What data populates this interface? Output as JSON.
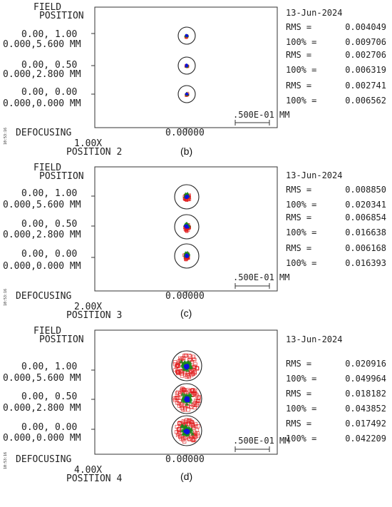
{
  "panels": [
    {
      "id": "b",
      "field_title_1": "FIELD",
      "field_title_2": "POSITION",
      "date": "13-Jun-2024",
      "fields": [
        {
          "angle": "0.00, 1.00",
          "height": "0.000,5.600 MM",
          "rms_label": "RMS =",
          "rms_value": "0.004049",
          "p100_label": "100% =",
          "p100_value": "0.009706"
        },
        {
          "angle": "0.00, 0.50",
          "height": "0.000,2.800 MM",
          "rms_label": "RMS =",
          "rms_value": "0.002706",
          "p100_label": "100% =",
          "p100_value": "0.006319"
        },
        {
          "angle": "0.00, 0.00",
          "height": "0.000,0.000 MM",
          "rms_label": "RMS =",
          "rms_value": "0.002741",
          "p100_label": "100% =",
          "p100_value": "0.006562"
        }
      ],
      "scale_label": ".500E-01 MM",
      "timestamp": "10:53:16",
      "defocusing_label": "DEFOCUSING",
      "defocusing_value": "0.00000",
      "magnification": "1.00X",
      "position": "POSITION  2",
      "caption": "(b)",
      "spot_spread": 0.9,
      "colors": {
        "red": "#e02020",
        "green": "#1a8a1a",
        "blue": "#1010e0"
      }
    },
    {
      "id": "c",
      "field_title_1": "FIELD",
      "field_title_2": "POSITION",
      "date": "13-Jun-2024",
      "fields": [
        {
          "angle": "0.00, 1.00",
          "height": "0.000,5.600 MM",
          "rms_label": "RMS =",
          "rms_value": "0.008850",
          "p100_label": "100% =",
          "p100_value": "0.020341"
        },
        {
          "angle": "0.00, 0.50",
          "height": "0.000,2.800 MM",
          "rms_label": "RMS =",
          "rms_value": "0.006854",
          "p100_label": "100% =",
          "p100_value": "0.016638"
        },
        {
          "angle": "0.00, 0.00",
          "height": "0.000,0.000 MM",
          "rms_label": "RMS =",
          "rms_value": "0.006168",
          "p100_label": "100% =",
          "p100_value": "0.016393"
        }
      ],
      "scale_label": ".500E-01 MM",
      "timestamp": "10:53:16",
      "defocusing_label": "DEFOCUSING",
      "defocusing_value": "0.00000",
      "magnification": "2.00X",
      "position": "POSITION  3",
      "caption": "(c)",
      "spot_spread": 1.0,
      "colors": {
        "red": "#e02020",
        "green": "#1a8a1a",
        "blue": "#1010e0"
      }
    },
    {
      "id": "d",
      "field_title_1": "FIELD",
      "field_title_2": "POSITION",
      "date": "13-Jun-2024",
      "fields": [
        {
          "angle": "0.00, 1.00",
          "height": "0.000,5.600 MM",
          "rms_label": "RMS =",
          "rms_value": "0.020916",
          "p100_label": "100% =",
          "p100_value": "0.049964"
        },
        {
          "angle": "0.00, 0.50",
          "height": "0.000,2.800 MM",
          "rms_label": "RMS =",
          "rms_value": "0.018182",
          "p100_label": "100% =",
          "p100_value": "0.043852"
        },
        {
          "angle": "0.00, 0.00",
          "height": "0.000,0.000 MM",
          "rms_label": "RMS =",
          "rms_value": "0.017492",
          "p100_label": "100% =",
          "p100_value": "0.042209"
        }
      ],
      "scale_label": ".500E-01 MM",
      "timestamp": "10:53:16",
      "defocusing_label": "DEFOCUSING",
      "defocusing_value": "0.00000",
      "magnification": "4.00X",
      "position": "POSITION  4",
      "caption": "(d)",
      "spot_spread": 1.0,
      "colors": {
        "red": "#e02020",
        "green": "#1a8a1a",
        "blue": "#1010e0"
      }
    }
  ]
}
